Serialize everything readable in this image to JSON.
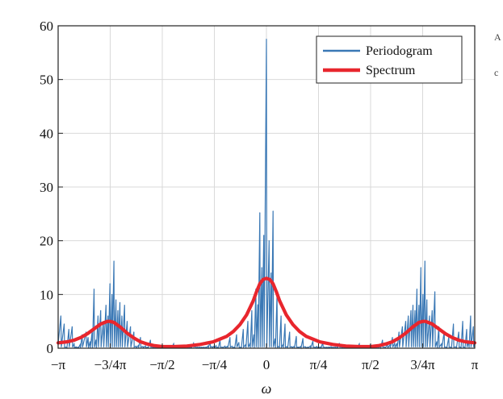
{
  "chart_data": {
    "type": "line",
    "title": "",
    "xlabel": "ω",
    "ylabel": "",
    "xlim": [
      -3.14159,
      3.14159
    ],
    "ylim": [
      0,
      60
    ],
    "grid": true,
    "legend_position": "top-right",
    "x_ticks": [
      {
        "value": -3.14159,
        "label": "−π"
      },
      {
        "value": -2.35619,
        "label": "−3/4π"
      },
      {
        "value": -1.5708,
        "label": "−π/2"
      },
      {
        "value": -0.7854,
        "label": "−π/4"
      },
      {
        "value": 0,
        "label": "0"
      },
      {
        "value": 0.7854,
        "label": "π/4"
      },
      {
        "value": 1.5708,
        "label": "π/2"
      },
      {
        "value": 2.35619,
        "label": "3/4π"
      },
      {
        "value": 3.14159,
        "label": "π"
      }
    ],
    "y_ticks": [
      {
        "value": 0,
        "label": "0"
      },
      {
        "value": 10,
        "label": "10"
      },
      {
        "value": 20,
        "label": "20"
      },
      {
        "value": 30,
        "label": "30"
      },
      {
        "value": 40,
        "label": "40"
      },
      {
        "value": 50,
        "label": "50"
      },
      {
        "value": 60,
        "label": "60"
      }
    ],
    "series": [
      {
        "name": "Periodogram",
        "color": "#3a78b5",
        "peaks": [
          {
            "x": -3.1,
            "y": 6
          },
          {
            "x": -3.05,
            "y": 4.5
          },
          {
            "x": -2.98,
            "y": 3.5
          },
          {
            "x": -2.93,
            "y": 4
          },
          {
            "x": -2.78,
            "y": 2.5
          },
          {
            "x": -2.72,
            "y": 3
          },
          {
            "x": -2.6,
            "y": 11
          },
          {
            "x": -2.54,
            "y": 6
          },
          {
            "x": -2.5,
            "y": 7
          },
          {
            "x": -2.46,
            "y": 5
          },
          {
            "x": -2.42,
            "y": 8
          },
          {
            "x": -2.39,
            "y": 6
          },
          {
            "x": -2.36,
            "y": 12
          },
          {
            "x": -2.33,
            "y": 10
          },
          {
            "x": -2.3,
            "y": 16.2
          },
          {
            "x": -2.27,
            "y": 9
          },
          {
            "x": -2.24,
            "y": 7
          },
          {
            "x": -2.21,
            "y": 8.5
          },
          {
            "x": -2.18,
            "y": 6
          },
          {
            "x": -2.14,
            "y": 8
          },
          {
            "x": -2.1,
            "y": 5
          },
          {
            "x": -2.05,
            "y": 4
          },
          {
            "x": -2.0,
            "y": 3
          },
          {
            "x": -1.9,
            "y": 2
          },
          {
            "x": -1.75,
            "y": 1.5
          },
          {
            "x": -1.4,
            "y": 0.8
          },
          {
            "x": -1.1,
            "y": 0.9
          },
          {
            "x": -0.85,
            "y": 1.2
          },
          {
            "x": -0.7,
            "y": 1.5
          },
          {
            "x": -0.55,
            "y": 2
          },
          {
            "x": -0.45,
            "y": 2.5
          },
          {
            "x": -0.35,
            "y": 3.5
          },
          {
            "x": -0.28,
            "y": 5
          },
          {
            "x": -0.22,
            "y": 7
          },
          {
            "x": -0.16,
            "y": 11
          },
          {
            "x": -0.1,
            "y": 25.2
          },
          {
            "x": -0.07,
            "y": 15
          },
          {
            "x": -0.04,
            "y": 21
          },
          {
            "x": 0,
            "y": 57.5
          },
          {
            "x": 0.04,
            "y": 20
          },
          {
            "x": 0.07,
            "y": 14
          },
          {
            "x": 0.1,
            "y": 25.5
          },
          {
            "x": 0.16,
            "y": 10
          },
          {
            "x": 0.22,
            "y": 6
          },
          {
            "x": 0.28,
            "y": 4.5
          },
          {
            "x": 0.35,
            "y": 3
          },
          {
            "x": 0.45,
            "y": 2.2
          },
          {
            "x": 0.55,
            "y": 1.8
          },
          {
            "x": 0.7,
            "y": 1.3
          },
          {
            "x": 0.85,
            "y": 1.1
          },
          {
            "x": 1.1,
            "y": 0.9
          },
          {
            "x": 1.4,
            "y": 0.8
          },
          {
            "x": 1.75,
            "y": 1.5
          },
          {
            "x": 1.9,
            "y": 2
          },
          {
            "x": 2.0,
            "y": 3
          },
          {
            "x": 2.05,
            "y": 4
          },
          {
            "x": 2.1,
            "y": 5
          },
          {
            "x": 2.14,
            "y": 6
          },
          {
            "x": 2.18,
            "y": 7
          },
          {
            "x": 2.21,
            "y": 8
          },
          {
            "x": 2.24,
            "y": 7
          },
          {
            "x": 2.27,
            "y": 11
          },
          {
            "x": 2.3,
            "y": 8
          },
          {
            "x": 2.33,
            "y": 15
          },
          {
            "x": 2.36,
            "y": 10
          },
          {
            "x": 2.39,
            "y": 16.2
          },
          {
            "x": 2.42,
            "y": 9
          },
          {
            "x": 2.46,
            "y": 6
          },
          {
            "x": 2.5,
            "y": 7
          },
          {
            "x": 2.54,
            "y": 10.5
          },
          {
            "x": 2.6,
            "y": 4
          },
          {
            "x": 2.68,
            "y": 3
          },
          {
            "x": 2.75,
            "y": 2
          },
          {
            "x": 2.82,
            "y": 4.5
          },
          {
            "x": 2.9,
            "y": 3
          },
          {
            "x": 2.96,
            "y": 5
          },
          {
            "x": 3.02,
            "y": 3.5
          },
          {
            "x": 3.08,
            "y": 6
          },
          {
            "x": 3.12,
            "y": 4
          }
        ]
      },
      {
        "name": "Spectrum",
        "color": "#e8262d",
        "x": [
          -3.14159,
          -3.0,
          -2.9,
          -2.8,
          -2.7,
          -2.6,
          -2.5,
          -2.4,
          -2.36,
          -2.3,
          -2.2,
          -2.1,
          -2.0,
          -1.9,
          -1.8,
          -1.7,
          -1.57,
          -1.4,
          -1.2,
          -1.0,
          -0.8,
          -0.6,
          -0.5,
          -0.4,
          -0.3,
          -0.2,
          -0.15,
          -0.1,
          -0.05,
          0,
          0.05,
          0.1,
          0.15,
          0.2,
          0.3,
          0.4,
          0.5,
          0.6,
          0.8,
          1.0,
          1.2,
          1.4,
          1.57,
          1.7,
          1.8,
          1.9,
          2.0,
          2.1,
          2.2,
          2.3,
          2.36,
          2.4,
          2.5,
          2.6,
          2.7,
          2.8,
          2.9,
          3.0,
          3.14159
        ],
        "values": [
          1.0,
          1.2,
          1.5,
          2.0,
          2.7,
          3.6,
          4.5,
          5.0,
          5.0,
          4.8,
          3.9,
          2.8,
          1.9,
          1.2,
          0.8,
          0.5,
          0.3,
          0.3,
          0.4,
          0.7,
          1.2,
          2.2,
          3.1,
          4.4,
          6.2,
          8.8,
          10.5,
          12.0,
          12.8,
          13.0,
          12.8,
          12.0,
          10.5,
          8.8,
          6.2,
          4.4,
          3.1,
          2.2,
          1.2,
          0.7,
          0.4,
          0.3,
          0.3,
          0.5,
          0.8,
          1.2,
          1.9,
          2.8,
          3.9,
          4.8,
          5.0,
          5.0,
          4.5,
          3.6,
          2.7,
          2.0,
          1.5,
          1.2,
          1.0
        ]
      }
    ],
    "edge_text": "A\nc"
  }
}
